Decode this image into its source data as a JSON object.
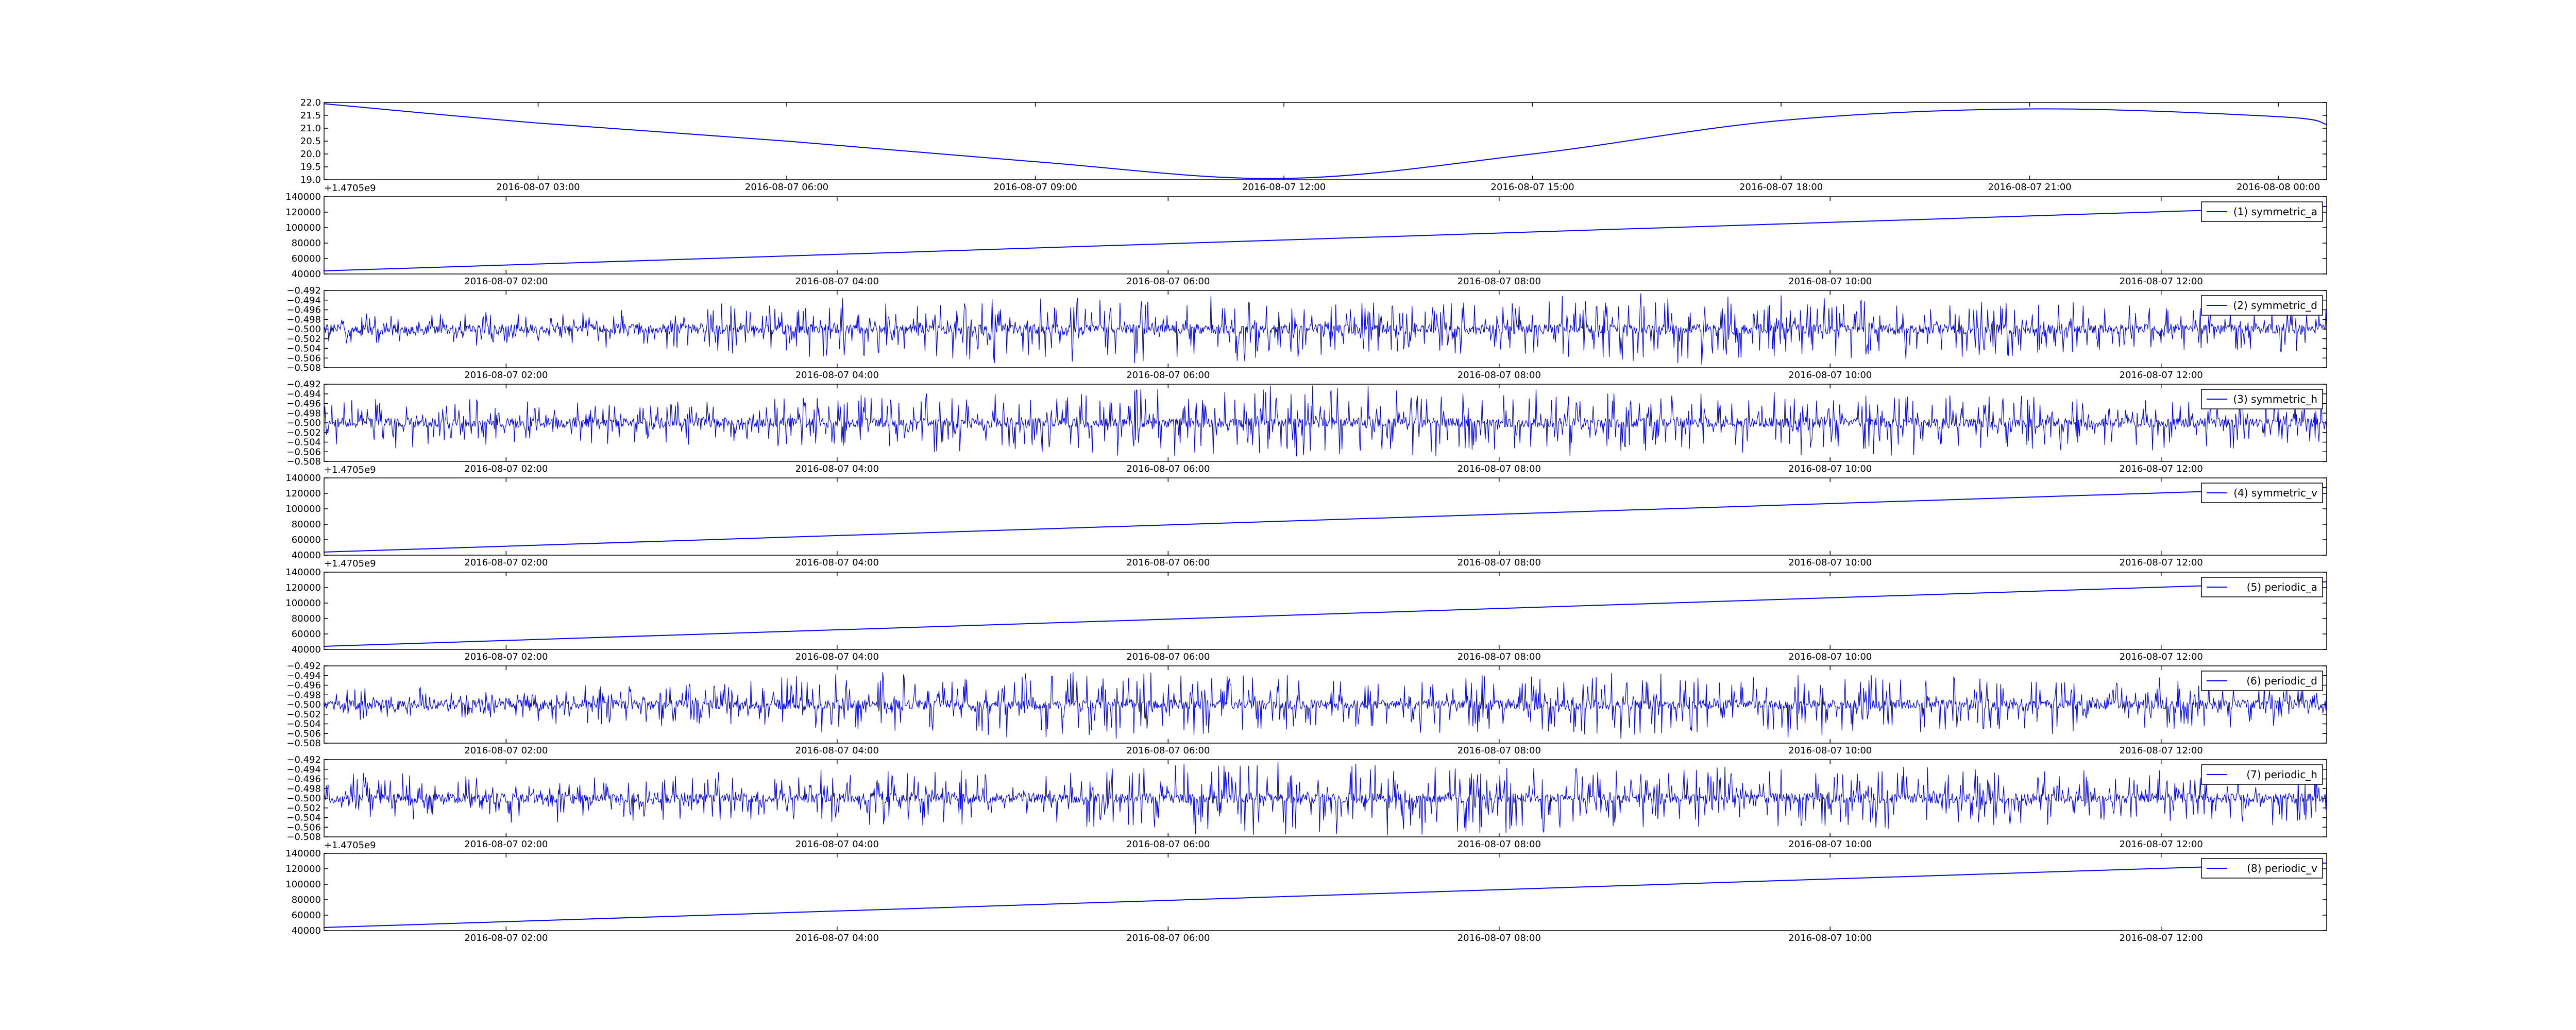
{
  "figure": {
    "line_color": "#0000ff",
    "background": "#ffffff"
  },
  "chart_data": [
    {
      "type": "line",
      "title": "",
      "series": [
        {
          "x": [
            "2016-08-07 00:25",
            "2016-08-07 03:00",
            "2016-08-07 06:00",
            "2016-08-07 09:00",
            "2016-08-07 12:00",
            "2016-08-07 15:00",
            "2016-08-07 18:00",
            "2016-08-07 21:00",
            "2016-08-08 00:00",
            "2016-08-08 00:35"
          ],
          "values": [
            21.95,
            21.2,
            20.5,
            19.7,
            19.05,
            20.0,
            21.3,
            21.75,
            21.45,
            21.15
          ]
        }
      ],
      "xticks": [
        "2016-08-07 03:00",
        "2016-08-07 06:00",
        "2016-08-07 09:00",
        "2016-08-07 12:00",
        "2016-08-07 15:00",
        "2016-08-07 18:00",
        "2016-08-07 21:00",
        "2016-08-08 00:00"
      ],
      "yticks": [
        "19.0",
        "19.5",
        "20.0",
        "20.5",
        "21.0",
        "21.5",
        "22.0"
      ],
      "ylim": [
        19.0,
        22.0
      ],
      "offset_text": "+1.4705e9"
    },
    {
      "type": "line",
      "series": [
        {
          "name": "(1) symmetric_a",
          "x": [
            "2016-08-07 00:54",
            "2016-08-07 13:00"
          ],
          "values": [
            44000,
            127500
          ]
        }
      ],
      "xticks": [
        "2016-08-07 02:00",
        "2016-08-07 04:00",
        "2016-08-07 06:00",
        "2016-08-07 08:00",
        "2016-08-07 10:00",
        "2016-08-07 12:00"
      ],
      "yticks": [
        "40000",
        "60000",
        "80000",
        "100000",
        "120000",
        "140000"
      ],
      "ylim": [
        40000,
        140000
      ],
      "legend": "top-right"
    },
    {
      "type": "line",
      "series": [
        {
          "name": "(2) symmetric_d",
          "style": "noise",
          "center": -0.5,
          "drift": 0.0,
          "amplitude": [
            0.003,
            0.003,
            0.005,
            0.007,
            0.006,
            0.005,
            0.007,
            0.006,
            0.005,
            0.004
          ]
        }
      ],
      "xticks": [
        "2016-08-07 02:00",
        "2016-08-07 04:00",
        "2016-08-07 06:00",
        "2016-08-07 08:00",
        "2016-08-07 10:00",
        "2016-08-07 12:00"
      ],
      "yticks": [
        "−0.508",
        "−0.506",
        "−0.504",
        "−0.502",
        "−0.500",
        "−0.498",
        "−0.496",
        "−0.494",
        "−0.492"
      ],
      "ylim": [
        -0.508,
        -0.492
      ],
      "legend": "top-right"
    },
    {
      "type": "line",
      "series": [
        {
          "name": "(3) symmetric_h",
          "style": "noise",
          "center": -0.5,
          "drift": 0.0,
          "amplitude": [
            0.005,
            0.004,
            0.005,
            0.006,
            0.007,
            0.007,
            0.006,
            0.006,
            0.005,
            0.005
          ]
        }
      ],
      "xticks": [
        "2016-08-07 02:00",
        "2016-08-07 04:00",
        "2016-08-07 06:00",
        "2016-08-07 08:00",
        "2016-08-07 10:00",
        "2016-08-07 12:00"
      ],
      "yticks": [
        "−0.508",
        "−0.506",
        "−0.504",
        "−0.502",
        "−0.500",
        "−0.498",
        "−0.496",
        "−0.494",
        "−0.492"
      ],
      "ylim": [
        -0.508,
        -0.492
      ],
      "legend": "top-right",
      "offset_text": "+1.4705e9"
    },
    {
      "type": "line",
      "series": [
        {
          "name": "(4) symmetric_v",
          "x": [
            "2016-08-07 00:54",
            "2016-08-07 13:00"
          ],
          "values": [
            44000,
            127500
          ]
        }
      ],
      "xticks": [
        "2016-08-07 02:00",
        "2016-08-07 04:00",
        "2016-08-07 06:00",
        "2016-08-07 08:00",
        "2016-08-07 10:00",
        "2016-08-07 12:00"
      ],
      "yticks": [
        "40000",
        "60000",
        "80000",
        "100000",
        "120000",
        "140000"
      ],
      "ylim": [
        40000,
        140000
      ],
      "legend": "top-right",
      "offset_text": "+1.4705e9"
    },
    {
      "type": "line",
      "series": [
        {
          "name": "(5) periodic_a",
          "x": [
            "2016-08-07 00:54",
            "2016-08-07 13:00"
          ],
          "values": [
            44000,
            127500
          ]
        }
      ],
      "xticks": [
        "2016-08-07 02:00",
        "2016-08-07 04:00",
        "2016-08-07 06:00",
        "2016-08-07 08:00",
        "2016-08-07 10:00",
        "2016-08-07 12:00"
      ],
      "yticks": [
        "40000",
        "60000",
        "80000",
        "100000",
        "120000",
        "140000"
      ],
      "ylim": [
        40000,
        140000
      ],
      "legend": "top-right"
    },
    {
      "type": "line",
      "series": [
        {
          "name": "(6) periodic_d",
          "style": "noise",
          "center": -0.5,
          "drift": 0.0,
          "amplitude": [
            0.003,
            0.003,
            0.005,
            0.007,
            0.006,
            0.005,
            0.007,
            0.006,
            0.005,
            0.004
          ]
        }
      ],
      "xticks": [
        "2016-08-07 02:00",
        "2016-08-07 04:00",
        "2016-08-07 06:00",
        "2016-08-07 08:00",
        "2016-08-07 10:00",
        "2016-08-07 12:00"
      ],
      "yticks": [
        "−0.508",
        "−0.506",
        "−0.504",
        "−0.502",
        "−0.500",
        "−0.498",
        "−0.496",
        "−0.494",
        "−0.492"
      ],
      "ylim": [
        -0.508,
        -0.492
      ],
      "legend": "top-right"
    },
    {
      "type": "line",
      "series": [
        {
          "name": "(7) periodic_h",
          "style": "noise",
          "center": -0.5,
          "drift": 0.0,
          "amplitude": [
            0.005,
            0.004,
            0.005,
            0.006,
            0.007,
            0.007,
            0.006,
            0.006,
            0.005,
            0.005
          ]
        }
      ],
      "xticks": [
        "2016-08-07 02:00",
        "2016-08-07 04:00",
        "2016-08-07 06:00",
        "2016-08-07 08:00",
        "2016-08-07 10:00",
        "2016-08-07 12:00"
      ],
      "yticks": [
        "−0.508",
        "−0.506",
        "−0.504",
        "−0.502",
        "−0.500",
        "−0.498",
        "−0.496",
        "−0.494",
        "−0.492"
      ],
      "ylim": [
        -0.508,
        -0.492
      ],
      "legend": "top-right",
      "offset_text": "+1.4705e9"
    },
    {
      "type": "line",
      "series": [
        {
          "name": "(8) periodic_v",
          "x": [
            "2016-08-07 00:54",
            "2016-08-07 13:00"
          ],
          "values": [
            44000,
            127500
          ]
        }
      ],
      "xticks": [
        "2016-08-07 02:00",
        "2016-08-07 04:00",
        "2016-08-07 06:00",
        "2016-08-07 08:00",
        "2016-08-07 10:00",
        "2016-08-07 12:00"
      ],
      "yticks": [
        "40000",
        "60000",
        "80000",
        "100000",
        "120000",
        "140000"
      ],
      "ylim": [
        40000,
        140000
      ],
      "legend": "top-right"
    }
  ]
}
